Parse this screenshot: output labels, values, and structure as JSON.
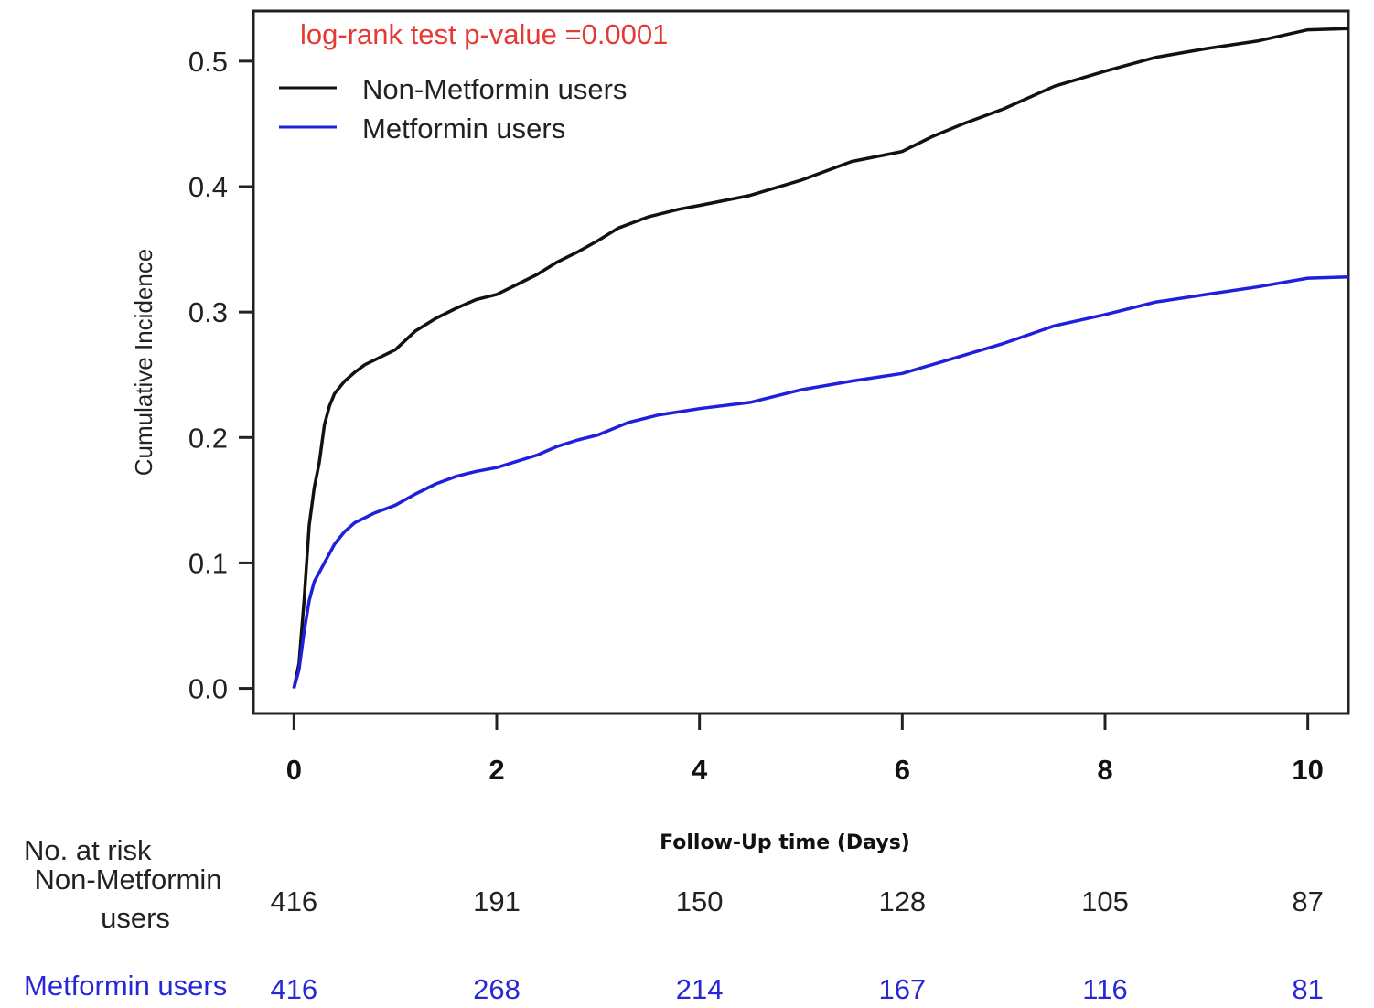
{
  "chart_data": {
    "type": "line",
    "title": "",
    "ylabel": "Cumulative Incidence",
    "xlabel": "Follow-Up time (Days)",
    "xlim": [
      -0.4,
      10.4
    ],
    "ylim": [
      -0.02,
      0.54
    ],
    "xticks": [
      0,
      2,
      4,
      6,
      8,
      10
    ],
    "yticks": [
      0.0,
      0.1,
      0.2,
      0.3,
      0.4,
      0.5
    ],
    "ytick_labels": [
      "0.0",
      "0.1",
      "0.2",
      "0.3",
      "0.4",
      "0.5"
    ],
    "grid": false,
    "legend_position": "top-left",
    "annotation": {
      "text": "log-rank test p-value =0.0001",
      "color": "#e53935"
    },
    "series": [
      {
        "name": "Non-Metformin users",
        "color": "#111111",
        "x": [
          0,
          0.05,
          0.1,
          0.15,
          0.2,
          0.25,
          0.3,
          0.35,
          0.4,
          0.5,
          0.6,
          0.7,
          0.8,
          1.0,
          1.2,
          1.4,
          1.6,
          1.8,
          2.0,
          2.2,
          2.4,
          2.6,
          2.8,
          3.0,
          3.2,
          3.5,
          3.8,
          4.0,
          4.5,
          5.0,
          5.5,
          6.0,
          6.3,
          6.6,
          7.0,
          7.5,
          8.0,
          8.5,
          9.0,
          9.5,
          10.0,
          10.4
        ],
        "y": [
          0.0,
          0.02,
          0.07,
          0.13,
          0.16,
          0.18,
          0.21,
          0.225,
          0.235,
          0.245,
          0.252,
          0.258,
          0.262,
          0.27,
          0.285,
          0.295,
          0.303,
          0.31,
          0.314,
          0.322,
          0.33,
          0.34,
          0.348,
          0.357,
          0.367,
          0.376,
          0.382,
          0.385,
          0.393,
          0.405,
          0.42,
          0.428,
          0.44,
          0.45,
          0.462,
          0.48,
          0.492,
          0.503,
          0.51,
          0.516,
          0.525,
          0.526
        ]
      },
      {
        "name": "Metformin users",
        "color": "#1f1fdc",
        "x": [
          0,
          0.05,
          0.1,
          0.15,
          0.2,
          0.3,
          0.4,
          0.5,
          0.6,
          0.8,
          1.0,
          1.2,
          1.4,
          1.6,
          1.8,
          2.0,
          2.2,
          2.4,
          2.6,
          2.8,
          3.0,
          3.3,
          3.6,
          4.0,
          4.5,
          5.0,
          5.5,
          6.0,
          6.5,
          7.0,
          7.5,
          8.0,
          8.5,
          9.0,
          9.5,
          10.0,
          10.4
        ],
        "y": [
          0.0,
          0.015,
          0.045,
          0.07,
          0.085,
          0.1,
          0.115,
          0.125,
          0.132,
          0.14,
          0.146,
          0.155,
          0.163,
          0.169,
          0.173,
          0.176,
          0.181,
          0.186,
          0.193,
          0.198,
          0.202,
          0.212,
          0.218,
          0.223,
          0.228,
          0.238,
          0.245,
          0.251,
          0.263,
          0.275,
          0.289,
          0.298,
          0.308,
          0.314,
          0.32,
          0.327,
          0.328
        ]
      }
    ],
    "risk_table": {
      "title": "No. at risk",
      "rows": [
        {
          "label_line1": "Non-Metformin",
          "label_line2": "users",
          "color": "#222222",
          "values": [
            416,
            191,
            150,
            128,
            105,
            87
          ]
        },
        {
          "label_line1": "Metformin users",
          "label_line2": "",
          "color": "#2727d8",
          "values": [
            416,
            268,
            214,
            167,
            116,
            81
          ]
        }
      ]
    }
  }
}
